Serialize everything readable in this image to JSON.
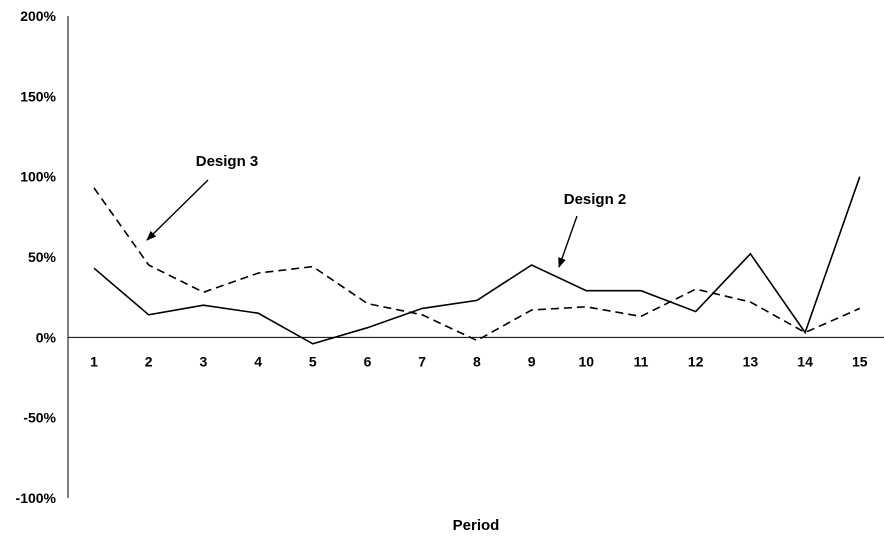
{
  "chart_data": {
    "type": "line",
    "title": "",
    "xlabel": "Period",
    "ylabel": "",
    "ylim": [
      -100,
      200
    ],
    "yticks": [
      200,
      150,
      100,
      50,
      0,
      -50,
      -100
    ],
    "ytick_labels": [
      "200%",
      "150%",
      "100%",
      "50%",
      "0%",
      "-50%",
      "-100%"
    ],
    "categories": [
      "1",
      "2",
      "3",
      "4",
      "5",
      "6",
      "7",
      "8",
      "9",
      "10",
      "11",
      "12",
      "13",
      "14",
      "15"
    ],
    "grid": false,
    "legend": "none",
    "series": [
      {
        "key": "design2",
        "name": "Design 2",
        "style": "solid",
        "color": "#000000",
        "values": [
          43,
          14,
          20,
          15,
          -4,
          6,
          18,
          23,
          45,
          29,
          29,
          16,
          52,
          3,
          100
        ]
      },
      {
        "key": "design3",
        "name": "Design 3",
        "style": "dashed",
        "color": "#000000",
        "values": [
          93,
          45,
          28,
          40,
          44,
          21,
          14,
          -2,
          17,
          19,
          13,
          30,
          22,
          3,
          18
        ]
      }
    ],
    "annotations": [
      {
        "text": "Design 3",
        "points_to_series": "design3",
        "points_to_index": 1
      },
      {
        "text": "Design 2",
        "points_to_series": "design2",
        "points_to_index": 8
      }
    ]
  }
}
